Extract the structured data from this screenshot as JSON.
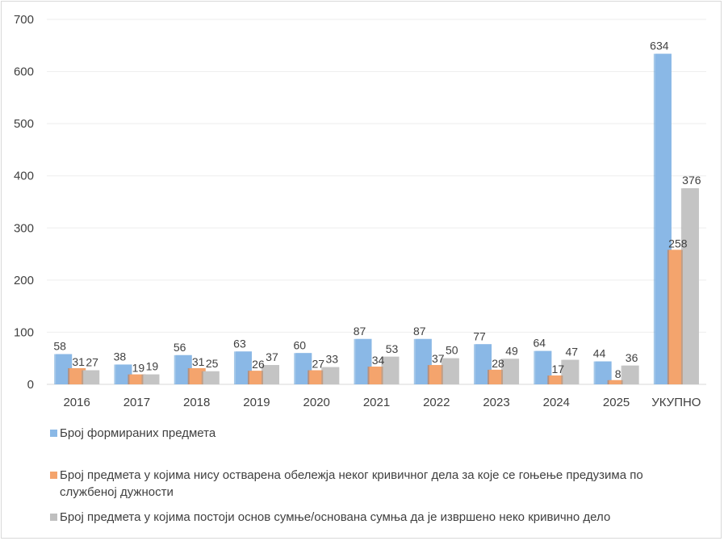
{
  "chart_data": {
    "type": "bar",
    "categories": [
      "2016",
      "2017",
      "2018",
      "2019",
      "2020",
      "2021",
      "2022",
      "2023",
      "2024",
      "2025",
      "УКУПНО"
    ],
    "series": [
      {
        "name": "Број формираних предмета",
        "color": "#5b9bd5",
        "values": [
          58,
          38,
          56,
          63,
          60,
          87,
          87,
          77,
          64,
          44,
          634
        ]
      },
      {
        "name": "Број предмета у којима нису остварена обележја неког кривичног дела за које се гоњење предузима по службеној дужности",
        "color": "#ed7d31",
        "values": [
          31,
          19,
          31,
          26,
          27,
          34,
          37,
          28,
          17,
          8,
          258
        ]
      },
      {
        "name": "Број предмета у којима постоји основ сумње/основана сумња да је извршено неко кривично дело",
        "color": "#a5a5a5",
        "values": [
          27,
          19,
          25,
          37,
          33,
          53,
          50,
          49,
          47,
          36,
          376
        ]
      }
    ],
    "y_ticks": [
      "0",
      "100",
      "200",
      "300",
      "400",
      "500",
      "600",
      "700"
    ],
    "ylim": [
      0,
      700
    ],
    "grid": true,
    "legend_position": "bottom",
    "title": "",
    "xlabel": "",
    "ylabel": ""
  }
}
